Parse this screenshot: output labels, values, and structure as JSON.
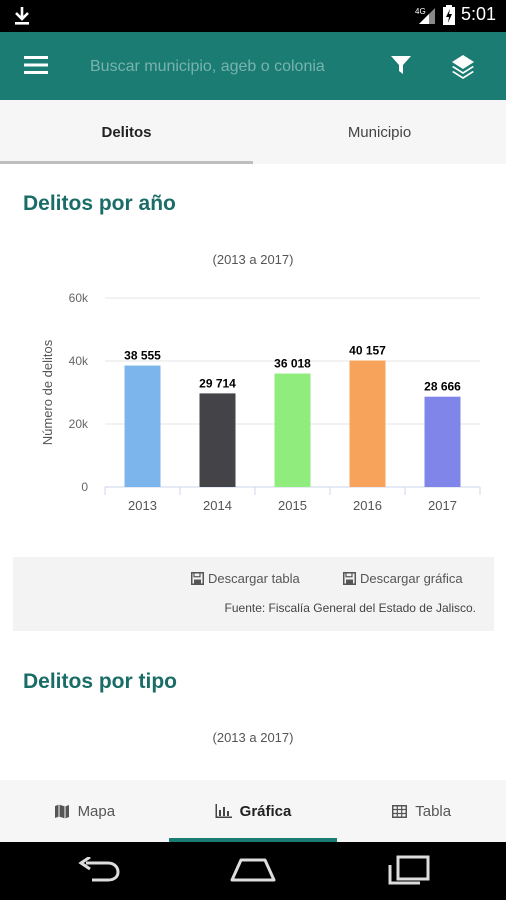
{
  "status_bar": {
    "time": "5:01",
    "network": "4G"
  },
  "app_bar": {
    "search_placeholder": "Buscar municipio, ageb o colonia",
    "accent_color": "#1a7c72"
  },
  "tabs": [
    {
      "label": "Delitos",
      "active": true
    },
    {
      "label": "Municipio",
      "active": false
    }
  ],
  "section1": {
    "title": "Delitos por año",
    "subtitle": "(2013 a 2017)",
    "download_table": "Descargar tabla",
    "download_chart": "Descargar gráfica",
    "source": "Fuente: Fiscalía General del Estado de Jalisco."
  },
  "section2": {
    "title": "Delitos por tipo",
    "subtitle": "(2013 a 2017)"
  },
  "chart_data": {
    "type": "bar",
    "categories": [
      "2013",
      "2014",
      "2015",
      "2016",
      "2017"
    ],
    "values": [
      38555,
      29714,
      36018,
      40157,
      28666
    ],
    "value_labels": [
      "38 555",
      "29 714",
      "36 018",
      "40 157",
      "28 666"
    ],
    "colors": [
      "#7cb5ec",
      "#434348",
      "#90ed7d",
      "#f7a35c",
      "#8085e9"
    ],
    "ylabel": "Número de delitos",
    "ylim": [
      0,
      60000
    ],
    "yticks": [
      0,
      20000,
      40000,
      60000
    ],
    "ytick_labels": [
      "0",
      "20k",
      "40k",
      "60k"
    ],
    "grid": true
  },
  "bottom_nav": [
    {
      "label": "Mapa",
      "icon": "map-icon",
      "active": false
    },
    {
      "label": "Gráfica",
      "icon": "bar-chart-icon",
      "active": true
    },
    {
      "label": "Tabla",
      "icon": "table-icon",
      "active": false
    }
  ]
}
